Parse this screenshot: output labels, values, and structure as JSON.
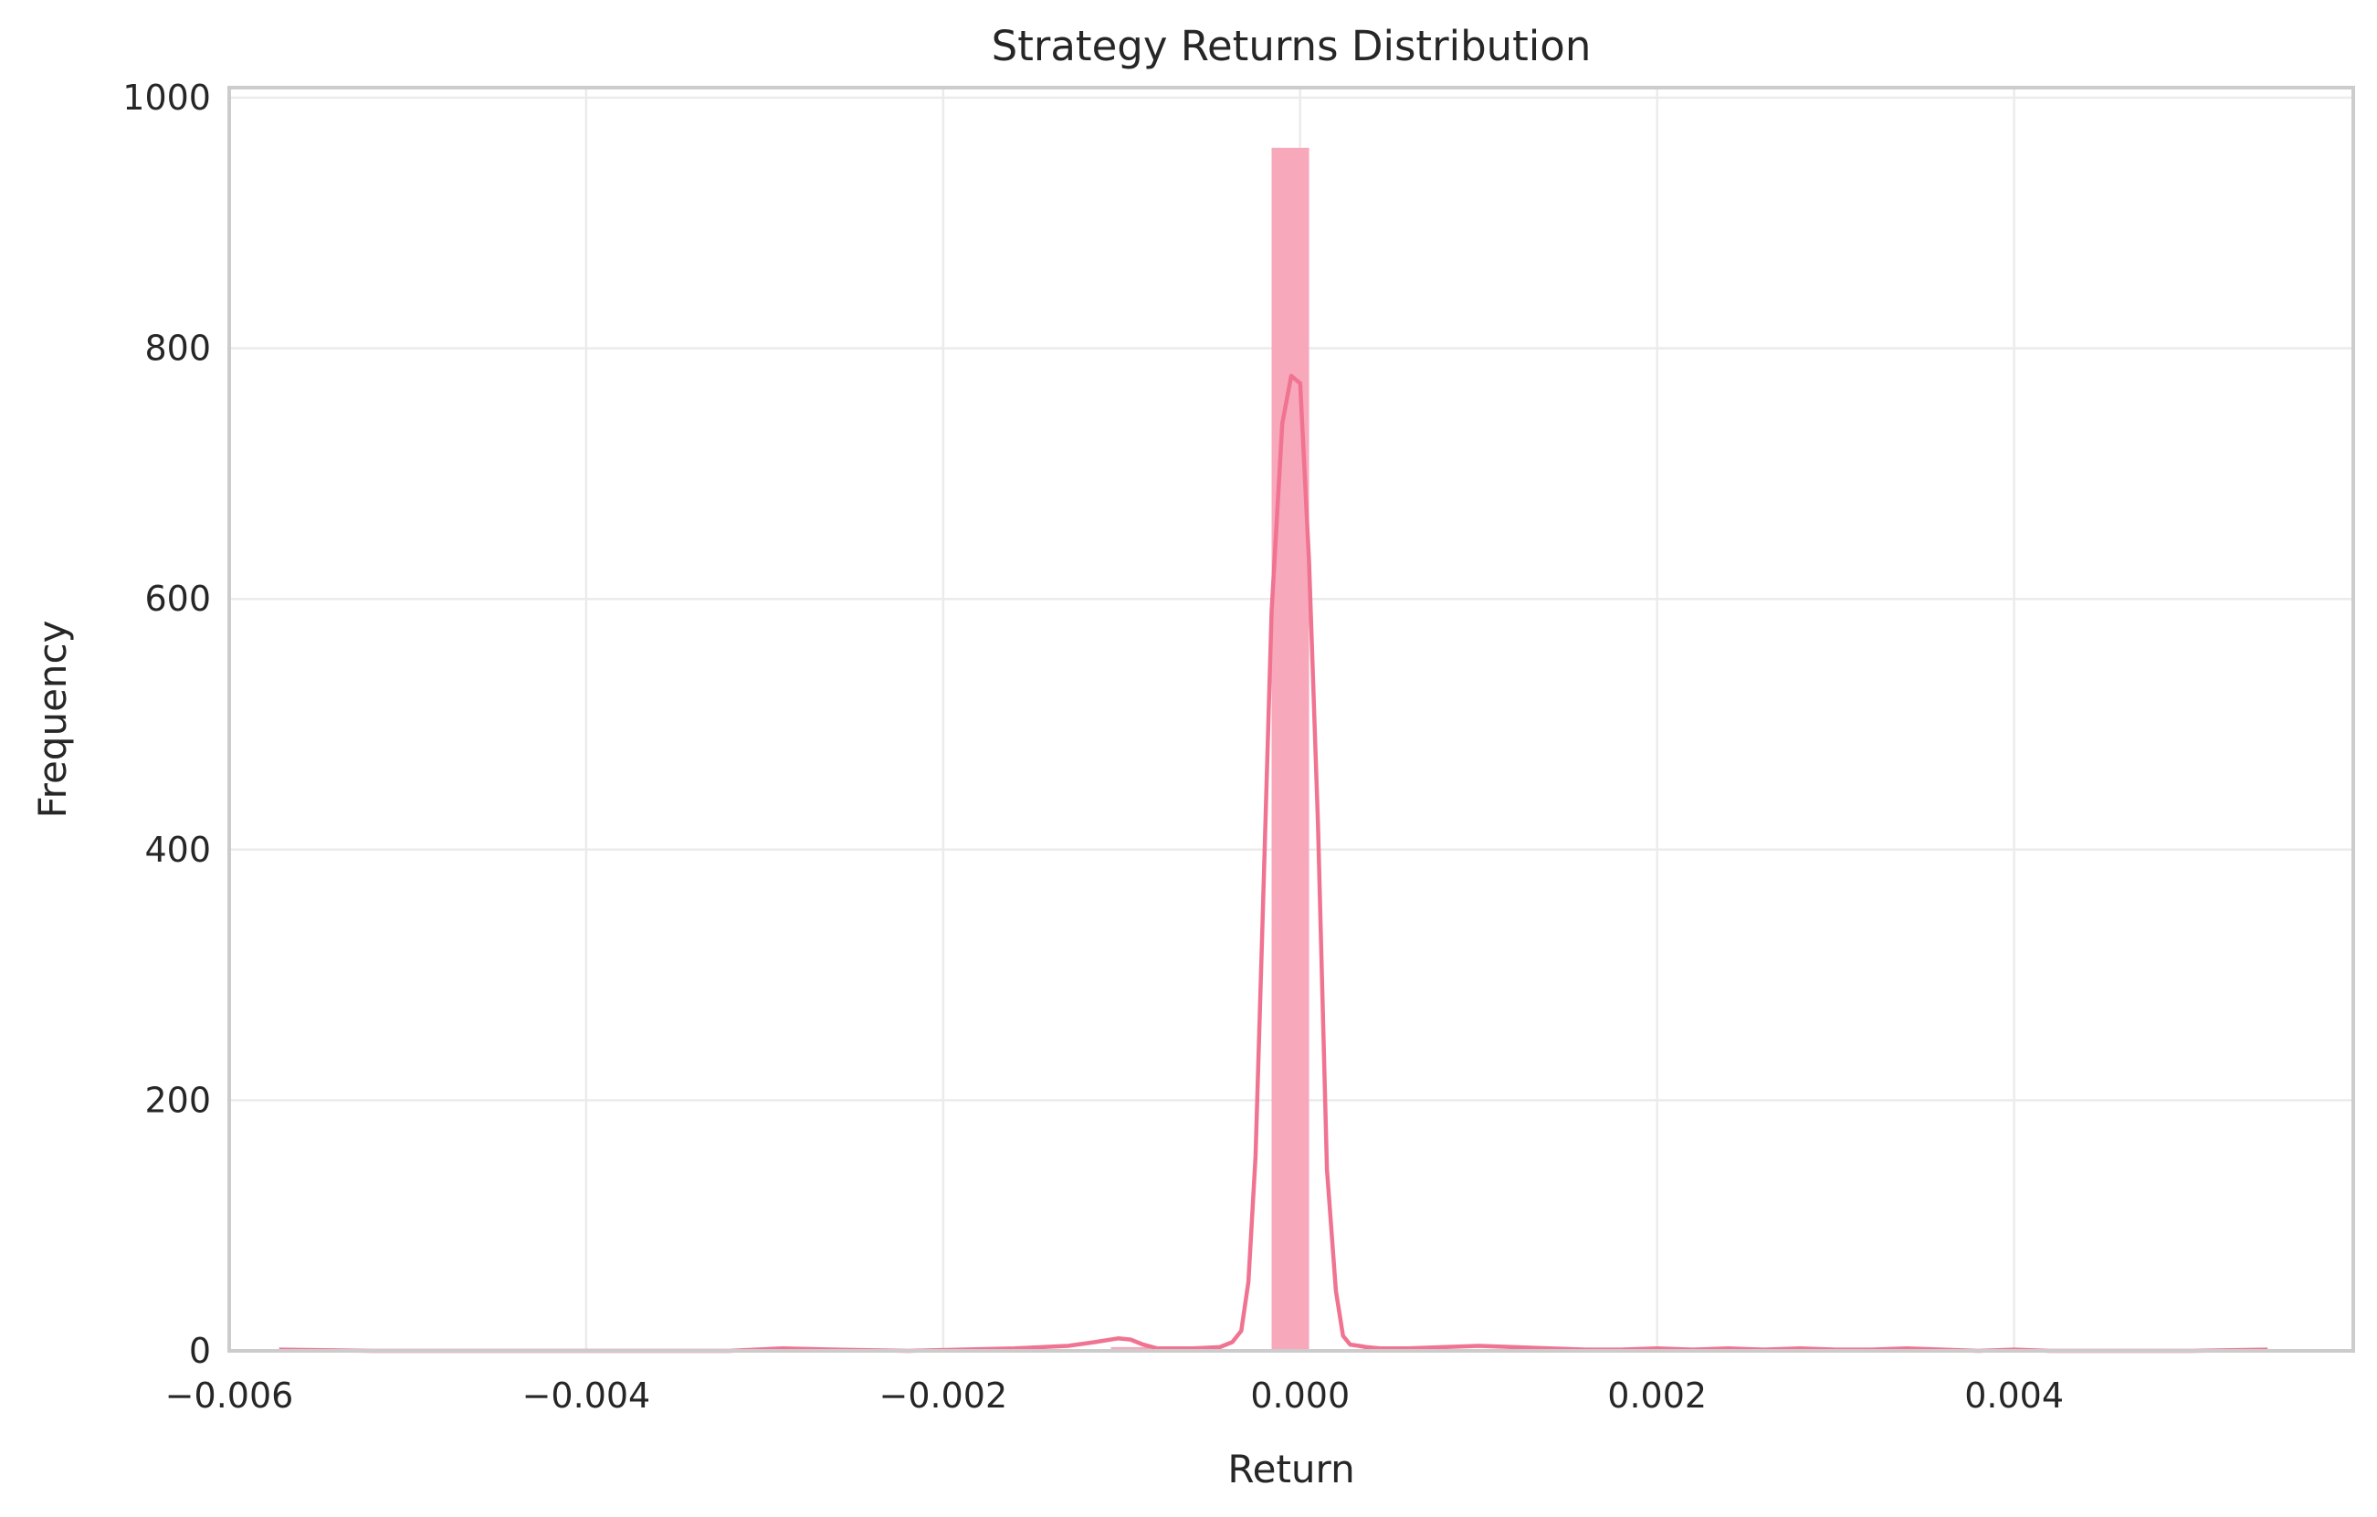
{
  "chart_data": {
    "type": "histogram",
    "title": "Strategy Returns Distribution",
    "xlabel": "Return",
    "ylabel": "Frequency",
    "xlim": [
      -0.006,
      0.0059
    ],
    "ylim": [
      0,
      1008
    ],
    "grid": true,
    "x_ticks": [
      {
        "value": -0.006,
        "label": "−0.006"
      },
      {
        "value": -0.004,
        "label": "−0.004"
      },
      {
        "value": -0.002,
        "label": "−0.002"
      },
      {
        "value": 0.0,
        "label": "0.000"
      },
      {
        "value": 0.002,
        "label": "0.002"
      },
      {
        "value": 0.004,
        "label": "0.004"
      }
    ],
    "y_ticks": [
      {
        "value": 0,
        "label": "0"
      },
      {
        "value": 200,
        "label": "200"
      },
      {
        "value": 400,
        "label": "400"
      },
      {
        "value": 600,
        "label": "600"
      },
      {
        "value": 800,
        "label": "800"
      },
      {
        "value": 1000,
        "label": "1000"
      }
    ],
    "bars": [
      {
        "x0": -0.00106,
        "x1": -0.00084,
        "count": 3
      },
      {
        "x0": -0.00016,
        "x1": 5e-05,
        "count": 960
      }
    ],
    "kde": {
      "x": [
        -0.00572,
        -0.0052,
        -0.0045,
        -0.0038,
        -0.0032,
        -0.0029,
        -0.0026,
        -0.0022,
        -0.0019,
        -0.0016,
        -0.0013,
        -0.00115,
        -0.00102,
        -0.00095,
        -0.00088,
        -0.0008,
        -0.0006,
        -0.00045,
        -0.00038,
        -0.00033,
        -0.00029,
        -0.00025,
        -0.00021,
        -0.00016,
        -0.0001,
        -5e-05,
        0.0,
        5e-05,
        0.0001,
        0.00015,
        0.0002,
        0.00024,
        0.00028,
        0.00033,
        0.00037,
        0.00045,
        0.0006,
        0.0008,
        0.001,
        0.0012,
        0.0014,
        0.0016,
        0.0018,
        0.002,
        0.0022,
        0.0024,
        0.0026,
        0.0028,
        0.003,
        0.0032,
        0.0034,
        0.0036,
        0.0038,
        0.004,
        0.0042,
        0.0045,
        0.005,
        0.00542
      ],
      "y": [
        1,
        0,
        0,
        0,
        0,
        2,
        1,
        0,
        1,
        2,
        4,
        7,
        10,
        9,
        5,
        2,
        2,
        3,
        7,
        16,
        55,
        155,
        345,
        590,
        740,
        778,
        772,
        630,
        420,
        145,
        48,
        12,
        5,
        4,
        3,
        2,
        2,
        3,
        4,
        3,
        2,
        1,
        1,
        2,
        1,
        2,
        1,
        2,
        1,
        1,
        2,
        1,
        0,
        1,
        0,
        0,
        0,
        1
      ]
    },
    "colors": {
      "bar": "#f7a8ba",
      "line": "#f07391"
    }
  }
}
